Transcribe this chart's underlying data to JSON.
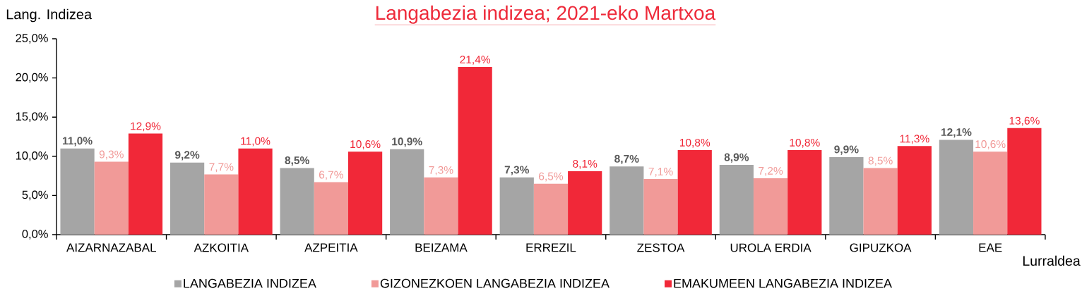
{
  "chart_data": {
    "type": "bar",
    "title": "Langabezia indizea; 2021-eko Martxoa",
    "ylabel": "Lang. Indizea",
    "xlabel": "Lurraldea",
    "categories": [
      "AIZARNAZABAL",
      "AZKOITIA",
      "AZPEITIA",
      "BEIZAMA",
      "ERREZIL",
      "ZESTOA",
      "UROLA ERDIA",
      "GIPUZKOA",
      "EAE"
    ],
    "series": [
      {
        "name": "LANGABEZIA INDIZEA",
        "color": "#a5a5a5",
        "values": [
          11.0,
          9.2,
          8.5,
          10.9,
          7.3,
          8.7,
          8.9,
          9.9,
          12.1
        ],
        "value_labels": [
          "11,0%",
          "9,2%",
          "8,5%",
          "10,9%",
          "7,3%",
          "8,7%",
          "8,9%",
          "9,9%",
          "12,1%"
        ]
      },
      {
        "name": "GIZONEZKOEN LANGABEZIA INDIZEA",
        "color": "#f19a98",
        "values": [
          9.3,
          7.7,
          6.7,
          7.3,
          6.5,
          7.1,
          7.2,
          8.5,
          10.6
        ],
        "value_labels": [
          "9,3%",
          "7,7%",
          "6,7%",
          "7,3%",
          "6,5%",
          "7,1%",
          "7,2%",
          "8,5%",
          "10,6%"
        ]
      },
      {
        "name": "EMAKUMEEN LANGABEZIA INDIZEA",
        "color": "#f12838",
        "values": [
          12.9,
          11.0,
          10.6,
          21.4,
          8.1,
          10.8,
          10.8,
          11.3,
          13.6
        ],
        "value_labels": [
          "12,9%",
          "11,0%",
          "10,6%",
          "21,4%",
          "8,1%",
          "10,8%",
          "10,8%",
          "11,3%",
          "13,6%"
        ]
      }
    ],
    "ylim": [
      0,
      25
    ],
    "yticks": [
      {
        "value": 0,
        "label": "0,0%"
      },
      {
        "value": 5,
        "label": "5,0%"
      },
      {
        "value": 10,
        "label": "10,0%"
      },
      {
        "value": 15,
        "label": "15,0%"
      },
      {
        "value": 20,
        "label": "20,0%"
      },
      {
        "value": 25,
        "label": "25,0%"
      }
    ],
    "legend": "bottom"
  }
}
